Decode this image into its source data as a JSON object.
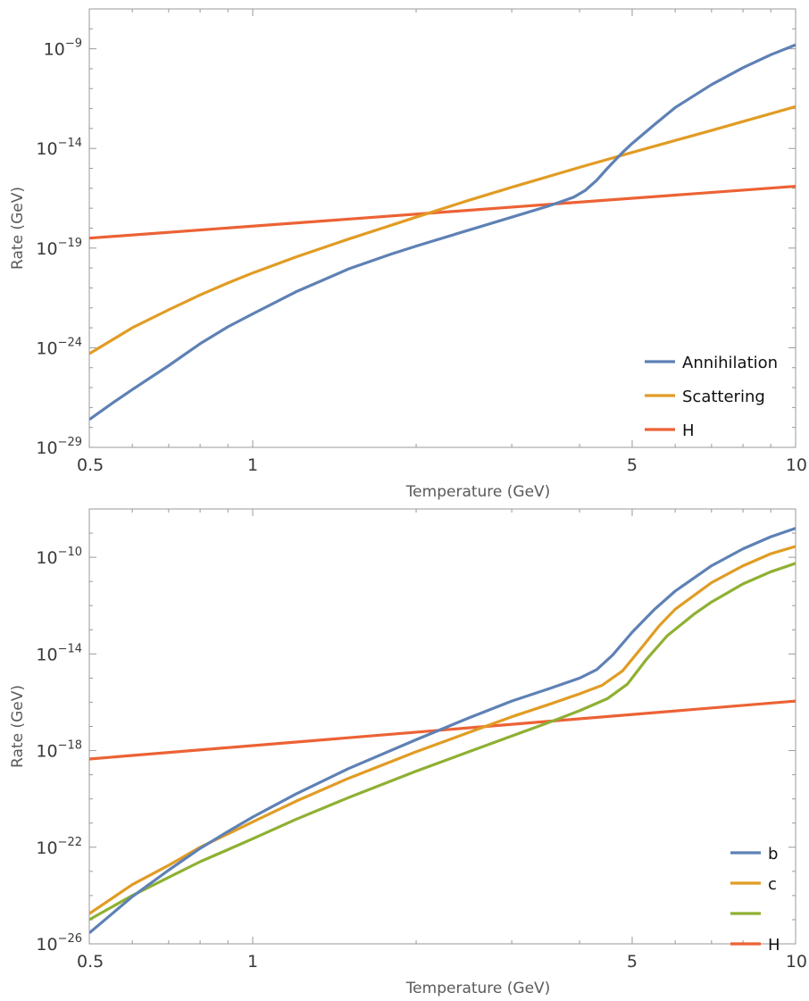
{
  "chart_data": [
    {
      "type": "line",
      "x_scale": "log",
      "y_scale": "log",
      "xlabel": "Temperature (GeV)",
      "ylabel": "Rate (GeV)",
      "xlim": [
        0.5,
        10
      ],
      "ylim": [
        1e-29,
        1e-07
      ],
      "legend_position": "bottom-right",
      "grid": false,
      "x_major_ticks": [
        {
          "value": 0.5,
          "label": "0.5"
        },
        {
          "value": 1,
          "label": "1"
        },
        {
          "value": 5,
          "label": "5"
        },
        {
          "value": 10,
          "label": "10"
        }
      ],
      "y_major_ticks": [
        {
          "exp": -29,
          "base": "10",
          "sup": "−29"
        },
        {
          "exp": -24,
          "base": "10",
          "sup": "−24"
        },
        {
          "exp": -19,
          "base": "10",
          "sup": "−19"
        },
        {
          "exp": -14,
          "base": "10",
          "sup": "−14"
        },
        {
          "exp": -9,
          "base": "10",
          "sup": "−9"
        }
      ],
      "series": [
        {
          "name": "Annihilation",
          "color": "#5e81b5",
          "x": [
            0.5,
            0.55,
            0.6,
            0.7,
            0.8,
            0.9,
            1.0,
            1.2,
            1.5,
            1.8,
            2.0,
            2.5,
            3.0,
            3.5,
            3.9,
            4.1,
            4.3,
            4.5,
            4.8,
            5.0,
            5.5,
            6.0,
            7.0,
            8.0,
            9.0,
            10.0
          ],
          "y": [
            -27.6,
            -26.8,
            -26.1,
            -24.9,
            -23.8,
            -22.95,
            -22.3,
            -21.2,
            -20.05,
            -19.3,
            -18.9,
            -18.1,
            -17.45,
            -16.9,
            -16.45,
            -16.1,
            -15.6,
            -15.0,
            -14.2,
            -13.75,
            -12.8,
            -11.95,
            -10.8,
            -9.95,
            -9.3,
            -8.8
          ]
        },
        {
          "name": "Scattering",
          "color": "#e19c24",
          "x": [
            0.5,
            0.6,
            0.7,
            0.8,
            0.9,
            1.0,
            1.2,
            1.5,
            2.0,
            2.5,
            3.0,
            4.0,
            5.0,
            6.0,
            7.0,
            8.0,
            10.0
          ],
          "y": [
            -24.3,
            -23.0,
            -22.1,
            -21.35,
            -20.75,
            -20.25,
            -19.45,
            -18.55,
            -17.45,
            -16.6,
            -15.95,
            -14.95,
            -14.2,
            -13.6,
            -13.1,
            -12.65,
            -11.9
          ]
        },
        {
          "name": "H",
          "color": "#ec6235",
          "x": [
            0.5,
            10.0
          ],
          "y": [
            -18.5,
            -15.9
          ]
        }
      ]
    },
    {
      "type": "line",
      "x_scale": "log",
      "y_scale": "log",
      "xlabel": "Temperature (GeV)",
      "ylabel": "Rate (GeV)",
      "xlim": [
        0.5,
        10
      ],
      "ylim": [
        1e-26,
        1e-08
      ],
      "legend_position": "bottom-right",
      "grid": false,
      "x_major_ticks": [
        {
          "value": 0.5,
          "label": "0.5"
        },
        {
          "value": 1,
          "label": "1"
        },
        {
          "value": 5,
          "label": "5"
        },
        {
          "value": 10,
          "label": "10"
        }
      ],
      "y_major_ticks": [
        {
          "exp": -26,
          "base": "10",
          "sup": "−26"
        },
        {
          "exp": -22,
          "base": "10",
          "sup": "−22"
        },
        {
          "exp": -18,
          "base": "10",
          "sup": "−18"
        },
        {
          "exp": -14,
          "base": "10",
          "sup": "−14"
        },
        {
          "exp": -10,
          "base": "10",
          "sup": "−10"
        }
      ],
      "series": [
        {
          "name": "b",
          "color": "#5e81b5",
          "x": [
            0.5,
            0.6,
            0.7,
            0.8,
            0.9,
            1.0,
            1.2,
            1.5,
            2.0,
            2.5,
            3.0,
            3.5,
            4.0,
            4.3,
            4.6,
            5.0,
            5.5,
            6.0,
            7.0,
            8.0,
            9.0,
            10.0
          ],
          "y": [
            -25.55,
            -24.05,
            -22.95,
            -22.05,
            -21.35,
            -20.75,
            -19.8,
            -18.75,
            -17.55,
            -16.65,
            -15.95,
            -15.45,
            -15.0,
            -14.65,
            -14.05,
            -13.1,
            -12.15,
            -11.4,
            -10.35,
            -9.65,
            -9.15,
            -8.8
          ]
        },
        {
          "name": "c",
          "color": "#e19c24",
          "x": [
            0.5,
            0.6,
            0.7,
            0.8,
            0.9,
            1.0,
            1.2,
            1.5,
            2.0,
            2.5,
            3.0,
            3.5,
            4.0,
            4.4,
            4.8,
            5.2,
            5.6,
            6.0,
            7.0,
            8.0,
            9.0,
            10.0
          ],
          "y": [
            -24.75,
            -23.55,
            -22.75,
            -22.0,
            -21.45,
            -20.95,
            -20.1,
            -19.15,
            -18.05,
            -17.25,
            -16.6,
            -16.1,
            -15.65,
            -15.3,
            -14.7,
            -13.75,
            -12.85,
            -12.15,
            -11.05,
            -10.35,
            -9.85,
            -9.55
          ]
        },
        {
          "name": "",
          "color": "#8fb032",
          "x": [
            0.5,
            0.6,
            0.7,
            0.8,
            0.9,
            1.0,
            1.2,
            1.5,
            2.0,
            2.5,
            3.0,
            3.5,
            4.0,
            4.5,
            4.9,
            5.3,
            5.8,
            6.5,
            7.0,
            8.0,
            9.0,
            10.0
          ],
          "y": [
            -25.0,
            -24.0,
            -23.25,
            -22.6,
            -22.1,
            -21.65,
            -20.85,
            -19.95,
            -18.85,
            -18.05,
            -17.4,
            -16.85,
            -16.35,
            -15.85,
            -15.25,
            -14.25,
            -13.25,
            -12.35,
            -11.85,
            -11.1,
            -10.6,
            -10.25
          ]
        },
        {
          "name": "H",
          "color": "#ec6235",
          "x": [
            0.5,
            10.0
          ],
          "y": [
            -18.35,
            -15.95
          ]
        }
      ]
    }
  ]
}
